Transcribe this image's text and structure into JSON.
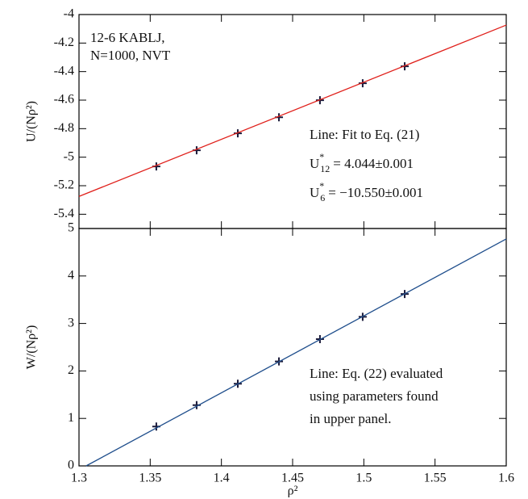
{
  "chart_data": [
    {
      "type": "line",
      "ylabel": "U/(Nρ²)",
      "xlim": [
        1.3,
        1.6
      ],
      "xticks": [
        1.3,
        1.35,
        1.4,
        1.45,
        1.5,
        1.55,
        1.6
      ],
      "ylim": [
        -5.5,
        -4
      ],
      "yticks": [
        -5.4,
        -5.2,
        -5,
        -4.8,
        -4.6,
        -4.4,
        -4.2,
        -4
      ],
      "series": [
        {
          "style": "marker",
          "color": "#1a1a3a",
          "x": [
            1.3543,
            1.3826,
            1.4115,
            1.4404,
            1.4692,
            1.4992,
            1.5287
          ],
          "values": [
            -5.065,
            -4.952,
            -4.833,
            -4.72,
            -4.601,
            -4.482,
            -4.363
          ]
        },
        {
          "style": "line",
          "color": "#e0201b",
          "x": [
            1.3,
            1.6
          ],
          "values": [
            -5.275,
            -4.074
          ]
        }
      ],
      "annotations": [
        "12-6 KABLJ,",
        "N=1000, NVT",
        "Line: Fit to Eq. (21)"
      ],
      "parameters": [
        {
          "symbol": "U",
          "sup": "*",
          "sub": "12",
          "text": "= 4.044±0.001"
        },
        {
          "symbol": "U",
          "sup": "*",
          "sub": "6",
          "text": "= −10.550±0.001"
        }
      ]
    },
    {
      "type": "line",
      "ylabel": "W/(Nρ²)",
      "xlabel": "ρ²",
      "xlim": [
        1.3,
        1.6
      ],
      "xticks": [
        1.3,
        1.35,
        1.4,
        1.45,
        1.5,
        1.55,
        1.6
      ],
      "ylim": [
        0,
        5
      ],
      "yticks": [
        0,
        1,
        2,
        3,
        4,
        5
      ],
      "series": [
        {
          "style": "marker",
          "color": "#1a1a3a",
          "x": [
            1.3543,
            1.3826,
            1.4115,
            1.4404,
            1.4692,
            1.4992,
            1.5287
          ],
          "values": [
            0.83,
            1.28,
            1.73,
            2.2,
            2.67,
            3.14,
            3.62
          ]
        },
        {
          "style": "line",
          "color": "#1f4e8c",
          "x": [
            1.305,
            1.6
          ],
          "values": [
            0,
            4.78
          ]
        }
      ],
      "annotations": [
        "Line: Eq. (22) evaluated",
        "using parameters found",
        "in upper panel."
      ]
    }
  ]
}
